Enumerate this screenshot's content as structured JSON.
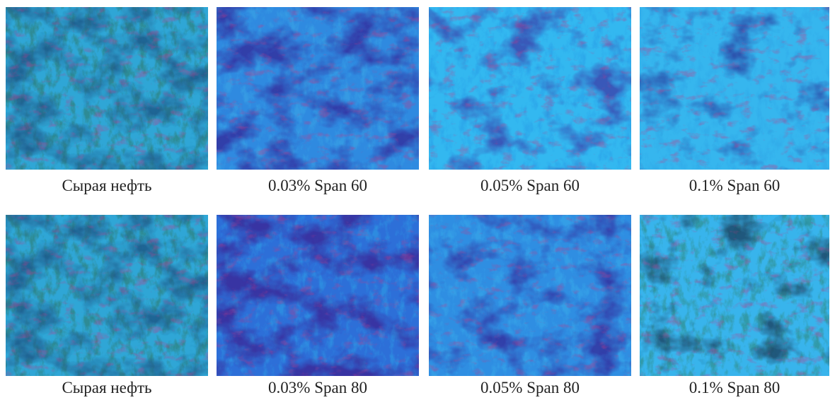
{
  "rows": [
    {
      "panels": [
        {
          "caption": "Сырая нефть"
        },
        {
          "caption": "0.03% Span 60"
        },
        {
          "caption": "0.05% Span 60"
        },
        {
          "caption": "0.1% Span 60"
        }
      ]
    },
    {
      "panels": [
        {
          "caption": "Сырая нефть"
        },
        {
          "caption": "0.03% Span 80"
        },
        {
          "caption": "0.05% Span 80"
        },
        {
          "caption": "0.1% Span 80"
        }
      ]
    }
  ]
}
